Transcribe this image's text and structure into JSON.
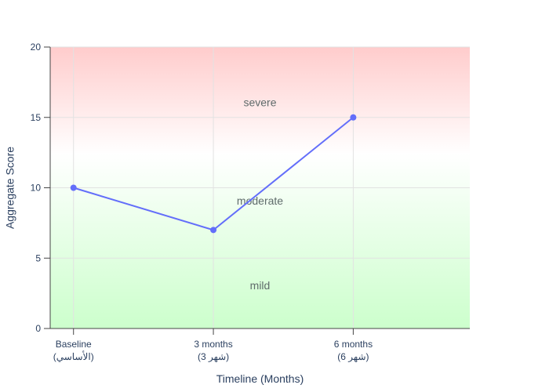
{
  "chart_data": {
    "type": "line",
    "title": "",
    "xlabel": "Timeline (Months)",
    "ylabel": "Aggregate Score",
    "x": [
      0,
      3,
      6
    ],
    "x_tick_labels": [
      [
        "Baseline",
        "(الأساسي)"
      ],
      [
        "3 months",
        "(شهر 3)"
      ],
      [
        "6 months",
        "(شهر 6)"
      ]
    ],
    "xlim": [
      -0.5,
      8.5
    ],
    "ylim": [
      0,
      20
    ],
    "y_ticks": [
      0,
      5,
      10,
      15,
      20
    ],
    "grid": true,
    "legend": false,
    "series": [
      {
        "values": [
          10,
          7,
          15
        ],
        "color": "#636efa"
      }
    ],
    "zones": [
      {
        "label": "severe",
        "label_y": 16,
        "from": 13.5,
        "to": 20,
        "color_top": "#ffcccc",
        "color_bottom": "#ffffff"
      },
      {
        "label": "moderate",
        "label_y": 9,
        "from": 6.5,
        "to": 13.5,
        "color_top": "#ffffff",
        "color_bottom": "#eafbe6"
      },
      {
        "label": "mild",
        "label_y": 3,
        "from": 0,
        "to": 6.5,
        "color_top": "#eafbe6",
        "color_bottom": "#ccffcc"
      }
    ],
    "zone_label_x": 4
  }
}
